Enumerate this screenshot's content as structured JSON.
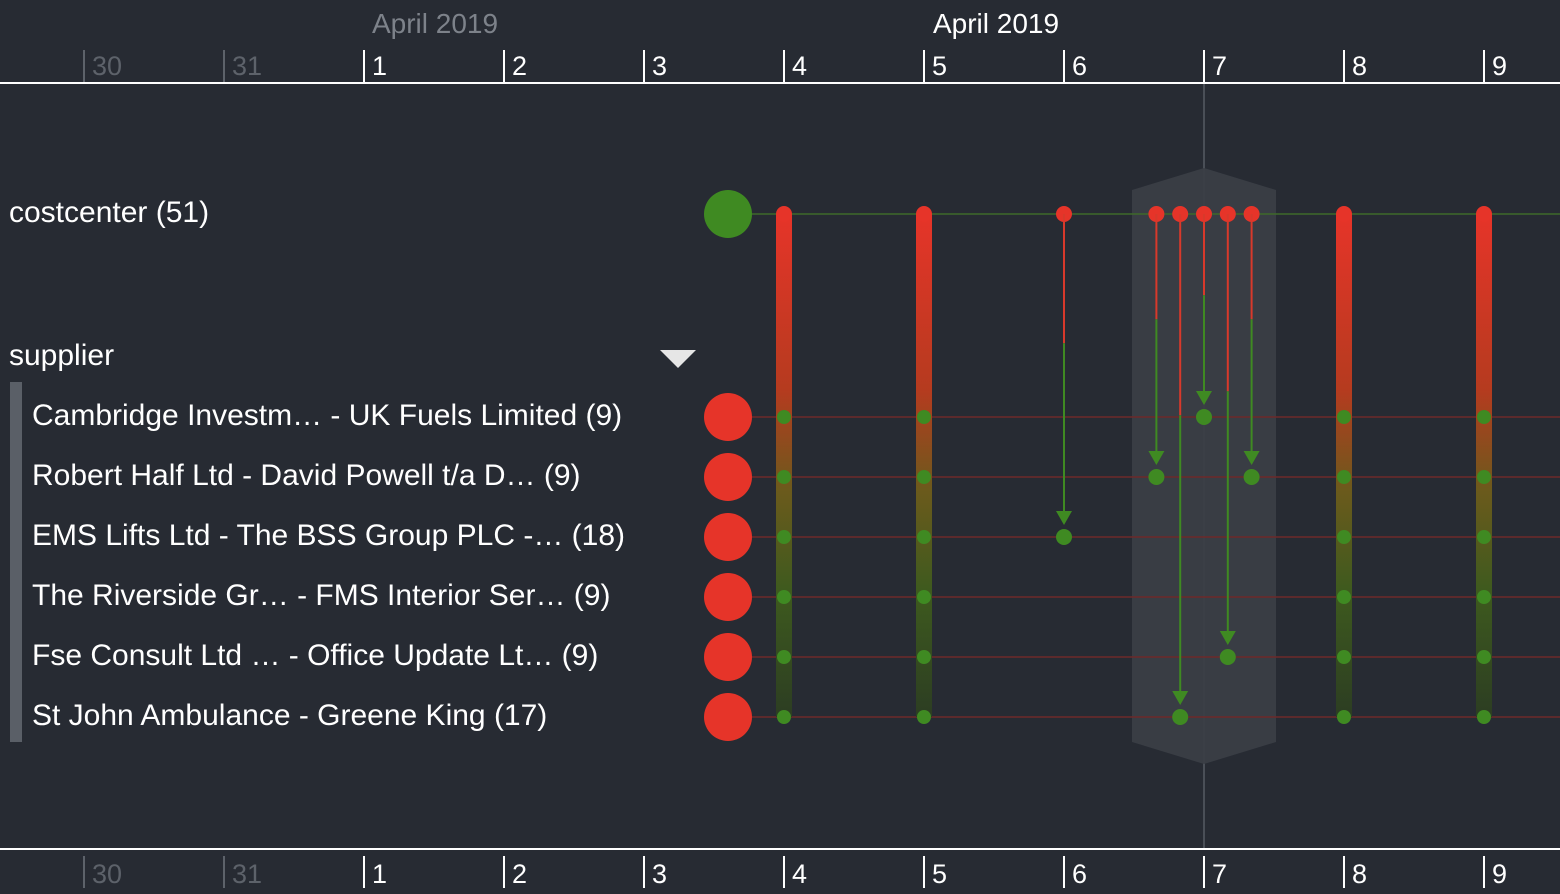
{
  "timeline": {
    "top_axis": {
      "months": [
        {
          "label": "April 2019",
          "dim": true
        },
        {
          "label": "April 2019",
          "dim": false
        }
      ],
      "ticks": [
        {
          "label": "30",
          "dim": true
        },
        {
          "label": "31",
          "dim": true
        },
        {
          "label": "1",
          "dim": false
        },
        {
          "label": "2",
          "dim": false
        },
        {
          "label": "3",
          "dim": false
        },
        {
          "label": "4",
          "dim": false
        },
        {
          "label": "5",
          "dim": false
        },
        {
          "label": "6",
          "dim": false
        },
        {
          "label": "7",
          "dim": false
        },
        {
          "label": "8",
          "dim": false
        },
        {
          "label": "9",
          "dim": false
        }
      ]
    },
    "bottom_axis": {
      "ticks": [
        {
          "label": "30",
          "dim": true
        },
        {
          "label": "31",
          "dim": true
        },
        {
          "label": "1",
          "dim": false
        },
        {
          "label": "2",
          "dim": false
        },
        {
          "label": "3",
          "dim": false
        },
        {
          "label": "4",
          "dim": false
        },
        {
          "label": "5",
          "dim": false
        },
        {
          "label": "6",
          "dim": false
        },
        {
          "label": "7",
          "dim": false
        },
        {
          "label": "8",
          "dim": false
        },
        {
          "label": "9",
          "dim": false
        }
      ]
    }
  },
  "rows": {
    "costcenter_label": "costcenter (51)",
    "supplier_group_label": "supplier",
    "suppliers": [
      {
        "label": "Cambridge Investm… - UK Fuels Limited (9)"
      },
      {
        "label": "Robert Half Ltd - David Powell t/a D… (9)"
      },
      {
        "label": "EMS Lifts Ltd - The BSS Group PLC -… (18)"
      },
      {
        "label": "The Riverside Gr… - FMS Interior Ser… (9)"
      },
      {
        "label": "Fse Consult Ltd … - Office Update Lt… (9)"
      },
      {
        "label": "St John Ambulance - Greene King (17)"
      }
    ]
  },
  "colors": {
    "background": "#272b33",
    "source_node": "#e63429",
    "costcenter_node": "#3f8a22",
    "target_dot": "#3f8a22",
    "highlight_band": "#3a3e46"
  },
  "links": {
    "full_days": [
      "4",
      "5",
      "8",
      "9"
    ],
    "single_links": [
      {
        "day": "6",
        "offset": 0.0,
        "target_row": 2
      },
      {
        "day": "7",
        "offset": -0.34,
        "target_row": 1
      },
      {
        "day": "7",
        "offset": -0.17,
        "target_row": 5
      },
      {
        "day": "7",
        "offset": 0.0,
        "target_row": 0
      },
      {
        "day": "7",
        "offset": 0.17,
        "target_row": 4
      },
      {
        "day": "7",
        "offset": 0.34,
        "target_row": 1
      }
    ],
    "highlighted_day": "7"
  }
}
